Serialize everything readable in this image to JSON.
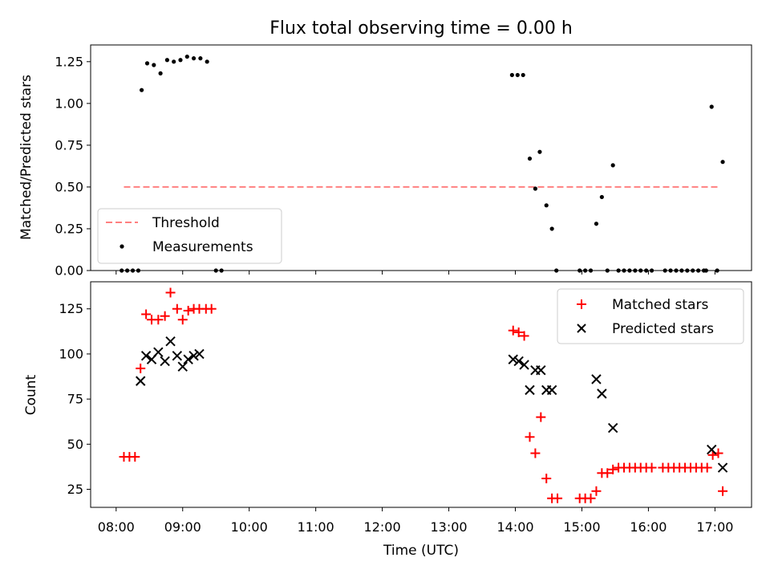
{
  "chart_data": [
    {
      "type": "scatter",
      "title": "Flux total observing time = 0.00 h",
      "ylabel": "Matched/Predicted stars",
      "ylim": [
        0.0,
        1.35
      ],
      "yticks": [
        "0.00",
        "0.25",
        "0.50",
        "0.75",
        "1.00",
        "1.25"
      ],
      "legend": {
        "position": "lower-left",
        "entries": [
          "Threshold",
          "Measurements"
        ]
      },
      "threshold": {
        "name": "Threshold",
        "x": [
          "08:07",
          "17:05"
        ],
        "y": 0.5,
        "color": "#ff8080"
      },
      "series": [
        {
          "name": "Measurements",
          "color": "#000000",
          "points": [
            [
              "08:05",
              0.0
            ],
            [
              "08:10",
              0.0
            ],
            [
              "08:15",
              0.0
            ],
            [
              "08:20",
              0.0
            ],
            [
              "08:23",
              1.08
            ],
            [
              "08:28",
              1.24
            ],
            [
              "08:34",
              1.23
            ],
            [
              "08:40",
              1.18
            ],
            [
              "08:46",
              1.26
            ],
            [
              "08:52",
              1.25
            ],
            [
              "08:58",
              1.26
            ],
            [
              "09:04",
              1.28
            ],
            [
              "09:10",
              1.27
            ],
            [
              "09:16",
              1.27
            ],
            [
              "09:22",
              1.25
            ],
            [
              "09:30",
              0.0
            ],
            [
              "09:35",
              0.0
            ],
            [
              "13:57",
              1.17
            ],
            [
              "14:02",
              1.17
            ],
            [
              "14:07",
              1.17
            ],
            [
              "14:13",
              0.67
            ],
            [
              "14:18",
              0.49
            ],
            [
              "14:22",
              0.71
            ],
            [
              "14:28",
              0.39
            ],
            [
              "14:33",
              0.25
            ],
            [
              "14:37",
              0.0
            ],
            [
              "14:58",
              0.0
            ],
            [
              "15:03",
              0.0
            ],
            [
              "15:08",
              0.0
            ],
            [
              "15:13",
              0.28
            ],
            [
              "15:18",
              0.44
            ],
            [
              "15:23",
              0.0
            ],
            [
              "15:28",
              0.63
            ],
            [
              "15:33",
              0.0
            ],
            [
              "15:38",
              0.0
            ],
            [
              "15:43",
              0.0
            ],
            [
              "15:48",
              0.0
            ],
            [
              "15:53",
              0.0
            ],
            [
              "15:58",
              0.0
            ],
            [
              "16:03",
              0.0
            ],
            [
              "16:15",
              0.0
            ],
            [
              "16:20",
              0.0
            ],
            [
              "16:25",
              0.0
            ],
            [
              "16:30",
              0.0
            ],
            [
              "16:35",
              0.0
            ],
            [
              "16:40",
              0.0
            ],
            [
              "16:45",
              0.0
            ],
            [
              "16:50",
              0.0
            ],
            [
              "16:52",
              0.0
            ],
            [
              "16:57",
              0.98
            ],
            [
              "17:02",
              0.0
            ],
            [
              "17:07",
              0.65
            ]
          ]
        }
      ]
    },
    {
      "type": "scatter",
      "xlabel": "Time (UTC)",
      "ylabel": "Count",
      "ylim": [
        15,
        140
      ],
      "yticks": [
        "25",
        "50",
        "75",
        "100",
        "125"
      ],
      "xlim": [
        "07:37",
        "17:33"
      ],
      "xticks": [
        "08:00",
        "09:00",
        "10:00",
        "11:00",
        "12:00",
        "13:00",
        "14:00",
        "15:00",
        "16:00",
        "17:00"
      ],
      "legend": {
        "position": "top-right",
        "entries": [
          "Matched stars",
          "Predicted stars"
        ]
      },
      "series": [
        {
          "name": "Matched stars",
          "marker": "+",
          "color": "#ff0000",
          "points": [
            [
              "08:07",
              43
            ],
            [
              "08:12",
              43
            ],
            [
              "08:17",
              43
            ],
            [
              "08:22",
              92
            ],
            [
              "08:27",
              122
            ],
            [
              "08:32",
              119
            ],
            [
              "08:38",
              119
            ],
            [
              "08:44",
              121
            ],
            [
              "08:49",
              134
            ],
            [
              "08:55",
              125
            ],
            [
              "09:00",
              119
            ],
            [
              "09:05",
              124
            ],
            [
              "09:10",
              125
            ],
            [
              "09:15",
              125
            ],
            [
              "09:21",
              125
            ],
            [
              "09:26",
              125
            ],
            [
              "13:58",
              113
            ],
            [
              "14:03",
              112
            ],
            [
              "14:08",
              110
            ],
            [
              "14:13",
              54
            ],
            [
              "14:18",
              45
            ],
            [
              "14:23",
              65
            ],
            [
              "14:28",
              31
            ],
            [
              "14:33",
              20
            ],
            [
              "14:38",
              20
            ],
            [
              "14:58",
              20
            ],
            [
              "15:03",
              20
            ],
            [
              "15:08",
              20
            ],
            [
              "15:13",
              24
            ],
            [
              "15:18",
              34
            ],
            [
              "15:23",
              34
            ],
            [
              "15:28",
              36
            ],
            [
              "15:33",
              37
            ],
            [
              "15:38",
              37
            ],
            [
              "15:43",
              37
            ],
            [
              "15:48",
              37
            ],
            [
              "15:53",
              37
            ],
            [
              "15:58",
              37
            ],
            [
              "16:03",
              37
            ],
            [
              "16:13",
              37
            ],
            [
              "16:18",
              37
            ],
            [
              "16:23",
              37
            ],
            [
              "16:28",
              37
            ],
            [
              "16:33",
              37
            ],
            [
              "16:38",
              37
            ],
            [
              "16:43",
              37
            ],
            [
              "16:48",
              37
            ],
            [
              "16:53",
              37
            ],
            [
              "16:58",
              44
            ],
            [
              "17:03",
              45
            ],
            [
              "17:07",
              24
            ]
          ]
        },
        {
          "name": "Predicted stars",
          "marker": "x",
          "color": "#000000",
          "points": [
            [
              "08:22",
              85
            ],
            [
              "08:27",
              99
            ],
            [
              "08:32",
              97
            ],
            [
              "08:38",
              101
            ],
            [
              "08:44",
              96
            ],
            [
              "08:49",
              107
            ],
            [
              "08:55",
              99
            ],
            [
              "09:00",
              93
            ],
            [
              "09:05",
              97
            ],
            [
              "09:10",
              99
            ],
            [
              "09:15",
              100
            ],
            [
              "13:58",
              97
            ],
            [
              "14:03",
              96
            ],
            [
              "14:08",
              94
            ],
            [
              "14:13",
              80
            ],
            [
              "14:18",
              91
            ],
            [
              "14:23",
              91
            ],
            [
              "14:28",
              80
            ],
            [
              "14:33",
              80
            ],
            [
              "15:13",
              86
            ],
            [
              "15:18",
              78
            ],
            [
              "15:28",
              59
            ],
            [
              "16:57",
              47
            ],
            [
              "17:07",
              37
            ]
          ]
        }
      ]
    }
  ]
}
